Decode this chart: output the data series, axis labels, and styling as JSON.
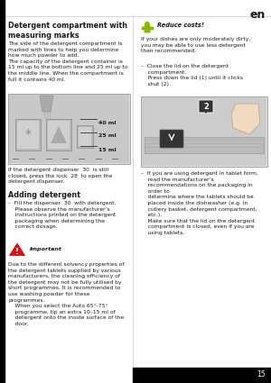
{
  "page_num": "15",
  "lang": "en",
  "bg_color": "#ffffff",
  "title_left": "Detergent compartment with\nmeasuring marks",
  "body_left_1": "The side of the detergent compartment is\nmarked with lines to help you determine\nhow much powder to add.\nThe capacity of the detergent container is\n15 ml up to the bottom line and 25 ml up to\nthe middle line. When the compartment is\nfull it contains 40 ml.",
  "ml_labels": [
    "40 ml",
    "25 ml",
    "15 ml"
  ],
  "caption_left": "If the detergent dispenser  30  is still\nclosed, press the lock  28  to open the\ndetergent dispenser.",
  "heading_adding": "Adding detergent",
  "adding_text": "–  Fill the dispenser  30  with detergent.\n    Please observe the manufacturer’s\n    instructions printed on the detergent\n    packaging when determining the\n    correct dosage.",
  "important_title": "Important",
  "important_text": "Due to the different solvency properties of\nthe detergent tablets supplied by various\nmanufacturers, the cleaning efficiency of\nthe detergent may not be fully utilised by\nshort programmes. It is recommended to\nuse washing powder for these\nprogrammes.\n    When you select the Auto 65°-75°\n    programme, tip an extra 10–15 ml of\n    detergent onto the inside surface of the\n    door.",
  "reduce_title": "Reduce costs!",
  "reduce_text": "If your dishes are only moderately dirty,\nyou may be able to use less detergent\nthan recommended.",
  "close_text": "–  Close the lid on the detergent\n    compartment.\n    Press down the lid (1) until it clicks\n    shut (2).",
  "right_bullet": "–  If you are using detergent in tablet form,\n    read the manufacturer’s\n    recommendations on the packaging in\n    order to\n    determine where the tablets should be\n    placed inside the dishwasher (e.g. in\n    cutlery basket, detergent compartment,\n    etc.).\n    Make sure that the lid on the detergent\n    compartment is closed, even if you are\n    using tablets.",
  "text_color": "#1a1a1a",
  "border_color": "#888888",
  "icon_green_color": "#8ab800",
  "warning_red": "#dd1111",
  "warning_orange": "#ee6600",
  "page_bg": "#ffffff",
  "col_split": 0.49,
  "lm": 0.03,
  "rm": 0.52,
  "fs_title": 5.8,
  "fs_body": 4.3,
  "fs_heading": 5.8,
  "fs_caption": 4.2
}
